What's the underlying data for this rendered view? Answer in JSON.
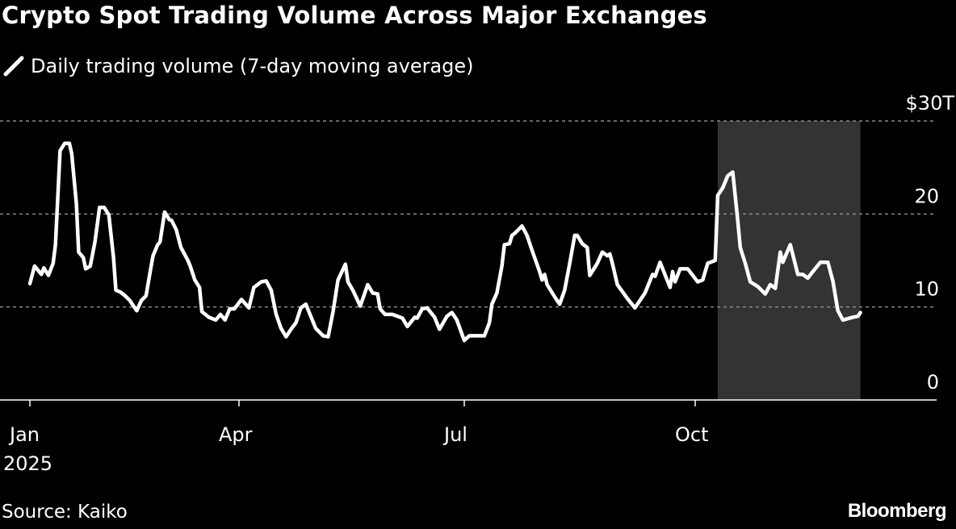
{
  "title": "Crypto Spot Trading Volume Across Major Exchanges",
  "source": "Source: Kaiko",
  "logo": "Bloomberg",
  "colors": {
    "background": "#000000",
    "line": "#ffffff",
    "highlight": "#333333",
    "grid": "#8a8a8a"
  },
  "chart_data": {
    "type": "line",
    "title": "Crypto Spot Trading Volume Across Major Exchanges",
    "legend": [
      {
        "label": "Daily trading volume (7-day moving average)",
        "icon": "slash-line-icon"
      }
    ],
    "y_unit_label": "$30T",
    "ylim": [
      0,
      30
    ],
    "y_ticks": [
      {
        "value": 30,
        "label": "$30T"
      },
      {
        "value": 20,
        "label": "20"
      },
      {
        "value": 10,
        "label": "10"
      },
      {
        "value": 0,
        "label": "0"
      }
    ],
    "x_ticks": [
      {
        "date": "2025-01-01",
        "label": "Jan",
        "sublabel": "2025"
      },
      {
        "date": "2025-04-01",
        "label": "Apr"
      },
      {
        "date": "2025-07-01",
        "label": "Jul"
      },
      {
        "date": "2025-10-01",
        "label": "Oct"
      }
    ],
    "grid": "horizontal dotted",
    "highlight": {
      "start": "2025-10-10",
      "end": "2025-12-06"
    },
    "series": [
      {
        "points": [
          [
            "2025-01-01",
            12.5
          ],
          [
            "2025-01-03",
            14.4
          ],
          [
            "2025-01-06",
            13.5
          ],
          [
            "2025-01-07",
            14.2
          ],
          [
            "2025-01-09",
            13.4
          ],
          [
            "2025-01-11",
            14.7
          ],
          [
            "2025-01-12",
            16.7
          ],
          [
            "2025-01-14",
            26.8
          ],
          [
            "2025-01-16",
            27.6
          ],
          [
            "2025-01-18",
            27.6
          ],
          [
            "2025-01-19",
            26.5
          ],
          [
            "2025-01-21",
            21.1
          ],
          [
            "2025-01-22",
            15.9
          ],
          [
            "2025-01-24",
            15.3
          ],
          [
            "2025-01-25",
            14.1
          ],
          [
            "2025-01-27",
            14.4
          ],
          [
            "2025-01-29",
            17.0
          ],
          [
            "2025-01-31",
            20.7
          ],
          [
            "2025-02-02",
            20.7
          ],
          [
            "2025-02-04",
            19.9
          ],
          [
            "2025-02-06",
            15.3
          ],
          [
            "2025-02-07",
            11.8
          ],
          [
            "2025-02-09",
            11.6
          ],
          [
            "2025-02-11",
            11.2
          ],
          [
            "2025-02-13",
            10.7
          ],
          [
            "2025-02-16",
            9.6
          ],
          [
            "2025-02-18",
            10.7
          ],
          [
            "2025-02-20",
            11.2
          ],
          [
            "2025-02-22",
            14.1
          ],
          [
            "2025-02-23",
            15.5
          ],
          [
            "2025-02-25",
            16.7
          ],
          [
            "2025-02-26",
            17.0
          ],
          [
            "2025-02-28",
            20.2
          ],
          [
            "2025-03-02",
            19.4
          ],
          [
            "2025-03-03",
            19.3
          ],
          [
            "2025-03-05",
            18.3
          ],
          [
            "2025-03-07",
            16.4
          ],
          [
            "2025-03-10",
            15.0
          ],
          [
            "2025-03-11",
            14.4
          ],
          [
            "2025-03-13",
            12.9
          ],
          [
            "2025-03-15",
            12.1
          ],
          [
            "2025-03-16",
            9.5
          ],
          [
            "2025-03-19",
            8.9
          ],
          [
            "2025-03-22",
            8.6
          ],
          [
            "2025-03-24",
            9.2
          ],
          [
            "2025-03-26",
            8.6
          ],
          [
            "2025-03-28",
            9.8
          ],
          [
            "2025-03-30",
            9.8
          ],
          [
            "2025-04-02",
            10.8
          ],
          [
            "2025-04-05",
            9.9
          ],
          [
            "2025-04-07",
            12.1
          ],
          [
            "2025-04-10",
            12.7
          ],
          [
            "2025-04-12",
            12.8
          ],
          [
            "2025-04-14",
            11.8
          ],
          [
            "2025-04-16",
            9.2
          ],
          [
            "2025-04-18",
            7.7
          ],
          [
            "2025-04-20",
            6.8
          ],
          [
            "2025-04-22",
            7.6
          ],
          [
            "2025-04-24",
            8.3
          ],
          [
            "2025-04-26",
            9.9
          ],
          [
            "2025-04-28",
            10.3
          ],
          [
            "2025-04-30",
            9.0
          ],
          [
            "2025-05-02",
            7.7
          ],
          [
            "2025-05-05",
            6.9
          ],
          [
            "2025-05-07",
            6.8
          ],
          [
            "2025-05-09",
            9.5
          ],
          [
            "2025-05-11",
            12.9
          ],
          [
            "2025-05-14",
            14.6
          ],
          [
            "2025-05-15",
            12.7
          ],
          [
            "2025-05-17",
            11.8
          ],
          [
            "2025-05-20",
            10.1
          ],
          [
            "2025-05-23",
            12.4
          ],
          [
            "2025-05-25",
            11.5
          ],
          [
            "2025-05-27",
            11.4
          ],
          [
            "2025-05-28",
            9.8
          ],
          [
            "2025-05-30",
            9.2
          ],
          [
            "2025-06-02",
            9.2
          ],
          [
            "2025-06-06",
            8.8
          ],
          [
            "2025-06-08",
            7.9
          ],
          [
            "2025-06-11",
            8.9
          ],
          [
            "2025-06-12",
            8.8
          ],
          [
            "2025-06-14",
            9.8
          ],
          [
            "2025-06-16",
            9.9
          ],
          [
            "2025-06-19",
            8.9
          ],
          [
            "2025-06-21",
            7.6
          ],
          [
            "2025-06-24",
            9.0
          ],
          [
            "2025-06-26",
            9.4
          ],
          [
            "2025-06-28",
            8.6
          ],
          [
            "2025-07-01",
            6.4
          ],
          [
            "2025-07-03",
            6.9
          ],
          [
            "2025-07-09",
            6.9
          ],
          [
            "2025-07-11",
            8.3
          ],
          [
            "2025-07-12",
            10.3
          ],
          [
            "2025-07-14",
            11.5
          ],
          [
            "2025-07-16",
            14.4
          ],
          [
            "2025-07-17",
            16.7
          ],
          [
            "2025-07-19",
            16.8
          ],
          [
            "2025-07-20",
            17.7
          ],
          [
            "2025-07-21",
            17.9
          ],
          [
            "2025-07-24",
            18.7
          ],
          [
            "2025-07-26",
            17.7
          ],
          [
            "2025-07-28",
            16.1
          ],
          [
            "2025-07-31",
            13.8
          ],
          [
            "2025-08-01",
            12.9
          ],
          [
            "2025-08-02",
            13.5
          ],
          [
            "2025-08-03",
            12.4
          ],
          [
            "2025-08-06",
            11.1
          ],
          [
            "2025-08-08",
            10.3
          ],
          [
            "2025-08-10",
            11.8
          ],
          [
            "2025-08-12",
            14.7
          ],
          [
            "2025-08-14",
            17.7
          ],
          [
            "2025-08-15",
            17.7
          ],
          [
            "2025-08-17",
            16.8
          ],
          [
            "2025-08-19",
            16.4
          ],
          [
            "2025-08-20",
            13.4
          ],
          [
            "2025-08-23",
            14.7
          ],
          [
            "2025-08-25",
            15.9
          ],
          [
            "2025-08-27",
            15.5
          ],
          [
            "2025-08-28",
            15.7
          ],
          [
            "2025-08-29",
            14.7
          ],
          [
            "2025-08-31",
            12.4
          ],
          [
            "2025-09-04",
            10.9
          ],
          [
            "2025-09-07",
            9.9
          ],
          [
            "2025-09-11",
            11.5
          ],
          [
            "2025-09-14",
            13.5
          ],
          [
            "2025-09-15",
            13.3
          ],
          [
            "2025-09-17",
            14.8
          ],
          [
            "2025-09-21",
            12.1
          ],
          [
            "2025-09-22",
            13.8
          ],
          [
            "2025-09-23",
            12.7
          ],
          [
            "2025-09-25",
            14.1
          ],
          [
            "2025-09-28",
            14.1
          ],
          [
            "2025-09-30",
            13.4
          ],
          [
            "2025-10-02",
            12.7
          ],
          [
            "2025-10-04",
            12.9
          ],
          [
            "2025-10-06",
            14.7
          ],
          [
            "2025-10-09",
            15.0
          ],
          [
            "2025-10-10",
            22.0
          ],
          [
            "2025-10-12",
            22.8
          ],
          [
            "2025-10-14",
            24.1
          ],
          [
            "2025-10-16",
            24.5
          ],
          [
            "2025-10-18",
            19.3
          ],
          [
            "2025-10-19",
            16.4
          ],
          [
            "2025-10-21",
            14.7
          ],
          [
            "2025-10-23",
            12.7
          ],
          [
            "2025-10-26",
            12.2
          ],
          [
            "2025-10-29",
            11.4
          ],
          [
            "2025-10-31",
            12.4
          ],
          [
            "2025-11-02",
            12.0
          ],
          [
            "2025-11-04",
            15.9
          ],
          [
            "2025-11-05",
            14.8
          ],
          [
            "2025-11-08",
            16.7
          ],
          [
            "2025-11-11",
            13.5
          ],
          [
            "2025-11-13",
            13.5
          ],
          [
            "2025-11-15",
            13.1
          ],
          [
            "2025-11-17",
            13.8
          ],
          [
            "2025-11-20",
            14.8
          ],
          [
            "2025-11-23",
            14.8
          ],
          [
            "2025-11-25",
            12.8
          ],
          [
            "2025-11-27",
            9.6
          ],
          [
            "2025-11-29",
            8.6
          ],
          [
            "2025-12-03",
            8.9
          ],
          [
            "2025-12-05",
            9.0
          ],
          [
            "2025-12-06",
            9.4
          ]
        ]
      }
    ]
  }
}
